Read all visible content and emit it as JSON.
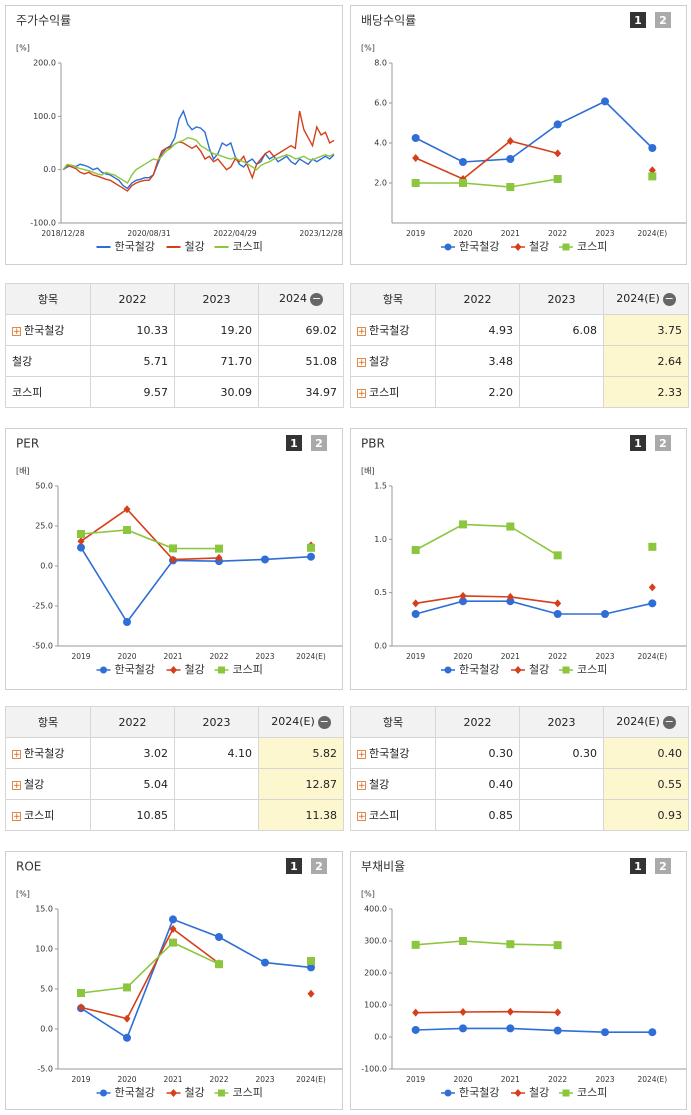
{
  "chart_data": [
    {
      "type": "line",
      "title": "주가수익률",
      "unit": "[%]",
      "categories": [
        "2018/12/28",
        null,
        null,
        null,
        null,
        null,
        null,
        null,
        null,
        null,
        null,
        null,
        null,
        null,
        null,
        null,
        null,
        null,
        null,
        null,
        "2020/08/31",
        null,
        null,
        null,
        null,
        null,
        null,
        null,
        null,
        null,
        null,
        null,
        null,
        null,
        null,
        null,
        null,
        null,
        null,
        null,
        "2022/04/29",
        null,
        null,
        null,
        null,
        null,
        null,
        null,
        null,
        null,
        null,
        null,
        null,
        null,
        null,
        null,
        null,
        null,
        null,
        null,
        "2023/12/28",
        null,
        null,
        null
      ],
      "ylim": [
        -100,
        200
      ],
      "yticks": [
        {
          "value": -100,
          "label": "-100.0"
        },
        {
          "value": 0,
          "label": "0.0"
        },
        {
          "value": 100,
          "label": "100.0"
        },
        {
          "value": 200,
          "label": "200.0"
        }
      ],
      "series": [
        {
          "name": "한국철강",
          "color": "#2e6ed6",
          "values": [
            0,
            5,
            8,
            6,
            10,
            8,
            5,
            0,
            3,
            -5,
            -8,
            -10,
            -15,
            -20,
            -30,
            -35,
            -25,
            -20,
            -18,
            -15,
            -15,
            -10,
            10,
            30,
            40,
            45,
            60,
            95,
            110,
            85,
            75,
            80,
            78,
            70,
            40,
            20,
            30,
            50,
            45,
            50,
            25,
            10,
            5,
            15,
            20,
            10,
            15,
            30,
            20,
            25,
            15,
            20,
            25,
            15,
            10,
            20,
            15,
            10,
            20,
            15,
            20,
            25,
            20,
            28
          ]
        },
        {
          "name": "철강",
          "color": "#d53f1a",
          "values": [
            0,
            8,
            5,
            2,
            -5,
            -8,
            -5,
            -10,
            -12,
            -15,
            -18,
            -20,
            -25,
            -30,
            -35,
            -40,
            -30,
            -25,
            -22,
            -20,
            -20,
            -10,
            15,
            35,
            40,
            42,
            48,
            52,
            50,
            45,
            40,
            45,
            35,
            20,
            25,
            15,
            20,
            10,
            0,
            5,
            20,
            15,
            25,
            5,
            -15,
            10,
            20,
            30,
            35,
            25,
            30,
            35,
            40,
            45,
            40,
            110,
            75,
            60,
            45,
            80,
            65,
            70,
            50,
            55
          ]
        },
        {
          "name": "코스피",
          "color": "#8cc63e",
          "values": [
            0,
            10,
            8,
            5,
            2,
            0,
            -2,
            -5,
            -8,
            -10,
            -5,
            -8,
            -10,
            -15,
            -20,
            -25,
            -10,
            0,
            5,
            10,
            15,
            20,
            18,
            25,
            35,
            40,
            48,
            52,
            55,
            60,
            58,
            55,
            45,
            40,
            35,
            30,
            28,
            25,
            22,
            20,
            22,
            18,
            15,
            10,
            5,
            0,
            8,
            12,
            15,
            20,
            22,
            25,
            28,
            25,
            20,
            22,
            25,
            20,
            18,
            22,
            25,
            28,
            25,
            30
          ]
        }
      ]
    },
    {
      "type": "line",
      "title": "배당수익률",
      "unit": "[%]",
      "tabs": [
        "1",
        "2"
      ],
      "categories": [
        "2019",
        "2020",
        "2021",
        "2022",
        "2023",
        "2024(E)"
      ],
      "ylim": [
        0,
        8
      ],
      "yticks": [
        {
          "value": 2,
          "label": "2.0"
        },
        {
          "value": 4,
          "label": "4.0"
        },
        {
          "value": 6,
          "label": "6.0"
        },
        {
          "value": 8,
          "label": "8.0"
        }
      ],
      "series": [
        {
          "name": "한국철강",
          "color": "#2e6ed6",
          "marker": "circle",
          "values": [
            4.25,
            3.05,
            3.2,
            4.93,
            6.08,
            3.75
          ]
        },
        {
          "name": "철강",
          "color": "#d53f1a",
          "marker": "diamond",
          "values": [
            3.25,
            2.2,
            4.1,
            3.48,
            null,
            2.64
          ]
        },
        {
          "name": "코스피",
          "color": "#8cc63e",
          "marker": "square",
          "values": [
            2.0,
            2.0,
            1.8,
            2.2,
            null,
            2.33
          ]
        }
      ]
    },
    {
      "type": "line",
      "title": "PER",
      "unit": "[배]",
      "tabs": [
        "1",
        "2"
      ],
      "categories": [
        "2019",
        "2020",
        "2021",
        "2022",
        "2023",
        "2024(E)"
      ],
      "ylim": [
        -50,
        50
      ],
      "yticks": [
        {
          "value": -50,
          "label": "-50.0"
        },
        {
          "value": -25,
          "label": "-25.0"
        },
        {
          "value": 0,
          "label": "0.0"
        },
        {
          "value": 25,
          "label": "25.0"
        },
        {
          "value": 50,
          "label": "50.0"
        }
      ],
      "series": [
        {
          "name": "한국철강",
          "color": "#2e6ed6",
          "marker": "circle",
          "values": [
            11.5,
            -35,
            3.5,
            3.02,
            4.1,
            5.82
          ]
        },
        {
          "name": "철강",
          "color": "#d53f1a",
          "marker": "diamond",
          "values": [
            15.5,
            35.5,
            4,
            5.04,
            null,
            12.87
          ]
        },
        {
          "name": "코스피",
          "color": "#8cc63e",
          "marker": "square",
          "values": [
            20,
            22.5,
            11,
            10.85,
            null,
            11.38
          ]
        }
      ]
    },
    {
      "type": "line",
      "title": "PBR",
      "unit": "[배]",
      "tabs": [
        "1",
        "2"
      ],
      "categories": [
        "2019",
        "2020",
        "2021",
        "2022",
        "2023",
        "2024(E)"
      ],
      "ylim": [
        0,
        1.5
      ],
      "yticks": [
        {
          "value": 0,
          "label": "0.0"
        },
        {
          "value": 0.5,
          "label": "0.5"
        },
        {
          "value": 1,
          "label": "1.0"
        },
        {
          "value": 1.5,
          "label": "1.5"
        }
      ],
      "series": [
        {
          "name": "한국철강",
          "color": "#2e6ed6",
          "marker": "circle",
          "values": [
            0.3,
            0.42,
            0.42,
            0.3,
            0.3,
            0.4
          ]
        },
        {
          "name": "철강",
          "color": "#d53f1a",
          "marker": "diamond",
          "values": [
            0.4,
            0.47,
            0.46,
            0.4,
            null,
            0.55
          ]
        },
        {
          "name": "코스피",
          "color": "#8cc63e",
          "marker": "square",
          "values": [
            0.9,
            1.14,
            1.12,
            0.85,
            null,
            0.93
          ]
        }
      ]
    },
    {
      "type": "line",
      "title": "ROE",
      "unit": "[%]",
      "tabs": [
        "1",
        "2"
      ],
      "categories": [
        "2019",
        "2020",
        "2021",
        "2022",
        "2023",
        "2024(E)"
      ],
      "ylim": [
        -5,
        15
      ],
      "yticks": [
        {
          "value": -5,
          "label": "-5.0"
        },
        {
          "value": 0,
          "label": "0.0"
        },
        {
          "value": 5,
          "label": "5.0"
        },
        {
          "value": 10,
          "label": "10.0"
        },
        {
          "value": 15,
          "label": "15.0"
        }
      ],
      "series": [
        {
          "name": "한국철강",
          "color": "#2e6ed6",
          "marker": "circle",
          "values": [
            2.6,
            -1.1,
            13.7,
            11.5,
            8.3,
            7.7
          ]
        },
        {
          "name": "철강",
          "color": "#d53f1a",
          "marker": "diamond",
          "values": [
            2.7,
            1.3,
            12.5,
            8.2,
            null,
            4.4
          ]
        },
        {
          "name": "코스피",
          "color": "#8cc63e",
          "marker": "square",
          "values": [
            4.5,
            5.2,
            10.8,
            8.1,
            null,
            8.5
          ]
        }
      ]
    },
    {
      "type": "line",
      "title": "부채비율",
      "unit": "[%]",
      "tabs": [
        "1",
        "2"
      ],
      "categories": [
        "2019",
        "2020",
        "2021",
        "2022",
        "2023",
        "2024(E)"
      ],
      "ylim": [
        -100,
        400
      ],
      "yticks": [
        {
          "value": -100,
          "label": "-100.0"
        },
        {
          "value": 0,
          "label": "0.0"
        },
        {
          "value": 100,
          "label": "100.0"
        },
        {
          "value": 200,
          "label": "200.0"
        },
        {
          "value": 300,
          "label": "300.0"
        },
        {
          "value": 400,
          "label": "400.0"
        }
      ],
      "series": [
        {
          "name": "한국철강",
          "color": "#2e6ed6",
          "marker": "circle",
          "values": [
            22,
            27,
            27,
            20,
            15,
            15
          ]
        },
        {
          "name": "철강",
          "color": "#d53f1a",
          "marker": "diamond",
          "values": [
            76,
            78,
            79,
            77,
            null,
            null
          ]
        },
        {
          "name": "코스피",
          "color": "#8cc63e",
          "marker": "square",
          "values": [
            288,
            300,
            290,
            287,
            null,
            null
          ]
        }
      ]
    }
  ],
  "tables": [
    {
      "header": [
        "항목",
        "2022",
        "2023",
        "2024"
      ],
      "rows": [
        [
          "한국철강",
          "10.33",
          "19.20",
          "69.02"
        ],
        [
          "철강",
          "5.71",
          "71.70",
          "51.08"
        ],
        [
          "코스피",
          "9.57",
          "30.09",
          "34.97"
        ]
      ]
    },
    {
      "header": [
        "항목",
        "2022",
        "2023",
        "2024(E)"
      ],
      "highlight_last_column": true,
      "rows": [
        [
          "한국철강",
          "4.93",
          "6.08",
          "3.75"
        ],
        [
          "철강",
          "3.48",
          null,
          "2.64"
        ],
        [
          "코스피",
          "2.20",
          null,
          "2.33"
        ]
      ]
    },
    {
      "header": [
        "항목",
        "2022",
        "2023",
        "2024(E)"
      ],
      "highlight_last_column": true,
      "rows": [
        [
          "한국철강",
          "3.02",
          "4.10",
          "5.82"
        ],
        [
          "철강",
          "5.04",
          null,
          "12.87"
        ],
        [
          "코스피",
          "10.85",
          null,
          "11.38"
        ]
      ]
    },
    {
      "header": [
        "항목",
        "2022",
        "2023",
        "2024(E)"
      ],
      "highlight_last_column": true,
      "rows": [
        [
          "한국철강",
          "0.30",
          "0.30",
          "0.40"
        ],
        [
          "철강",
          "0.40",
          null,
          "0.55"
        ],
        [
          "코스피",
          "0.85",
          null,
          "0.93"
        ]
      ]
    }
  ]
}
